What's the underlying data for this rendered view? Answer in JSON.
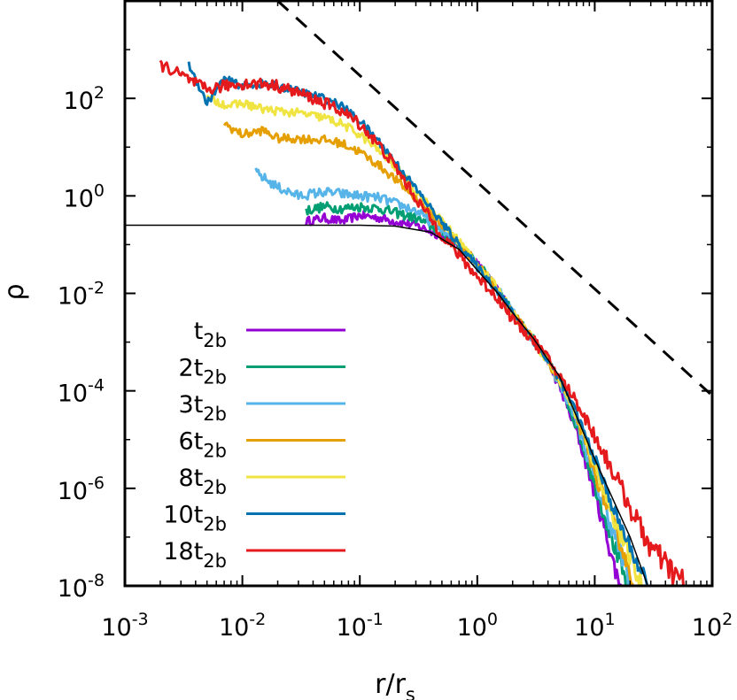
{
  "chart_data": {
    "type": "line",
    "title": "",
    "xlabel": "r/r",
    "xlabel_sub": "s",
    "ylabel": "ρ",
    "xscale": "log",
    "yscale": "log",
    "xlim": [
      0.001,
      100
    ],
    "ylim": [
      1e-08,
      10000
    ],
    "grid": false,
    "legend_position": "bottom-left",
    "x_ticks": [
      {
        "value": 0.001,
        "base": "10",
        "exp": "-3"
      },
      {
        "value": 0.01,
        "base": "10",
        "exp": "-2"
      },
      {
        "value": 0.1,
        "base": "10",
        "exp": "-1"
      },
      {
        "value": 1,
        "base": "10",
        "exp": "0"
      },
      {
        "value": 10,
        "base": "10",
        "exp": "1"
      },
      {
        "value": 100,
        "base": "10",
        "exp": "2"
      }
    ],
    "y_ticks": [
      {
        "value": 1e-08,
        "base": "10",
        "exp": "-8"
      },
      {
        "value": 1e-06,
        "base": "10",
        "exp": "-6"
      },
      {
        "value": 0.0001,
        "base": "10",
        "exp": "-4"
      },
      {
        "value": 0.01,
        "base": "10",
        "exp": "-2"
      },
      {
        "value": 1,
        "base": "10",
        "exp": "0"
      },
      {
        "value": 100,
        "base": "10",
        "exp": "2"
      }
    ],
    "reference_lines": [
      {
        "style": "dashed",
        "color": "#000000",
        "x": [
          0.02,
          100
        ],
        "y": [
          10000,
          8e-05
        ]
      },
      {
        "style": "solid-thin",
        "color": "#000000",
        "x": [
          0.001,
          0.01,
          0.1,
          0.2,
          0.4,
          0.7,
          1.0,
          1.5,
          2,
          3,
          5,
          10,
          20,
          40
        ],
        "y": [
          0.25,
          0.25,
          0.25,
          0.24,
          0.18,
          0.08,
          0.03,
          0.01,
          0.004,
          0.0012,
          0.0002,
          4e-06,
          1e-07,
          1e-09
        ]
      }
    ],
    "series": [
      {
        "name": "t",
        "sub": "2b",
        "prefix": "",
        "color": "#9400d3",
        "x": [
          0.035,
          0.05,
          0.07,
          0.1,
          0.15,
          0.2,
          0.3,
          0.5,
          0.7,
          1,
          1.5,
          2,
          3,
          4,
          5,
          7,
          10,
          13,
          15,
          17
        ],
        "y": [
          0.3,
          0.35,
          0.3,
          0.4,
          0.35,
          0.3,
          0.25,
          0.15,
          0.09,
          0.04,
          0.012,
          0.004,
          0.0011,
          0.0004,
          0.00012,
          1.5e-05,
          8e-07,
          8e-08,
          2e-08,
          1e-08
        ],
        "jitter": 0.09
      },
      {
        "name": "2t",
        "sub": "2b",
        "prefix": "",
        "color": "#009e73",
        "x": [
          0.035,
          0.05,
          0.07,
          0.1,
          0.15,
          0.2,
          0.3,
          0.5,
          0.7,
          1,
          1.5,
          2,
          3,
          4,
          5,
          7,
          10,
          14,
          16,
          19
        ],
        "y": [
          0.5,
          0.6,
          0.55,
          0.6,
          0.55,
          0.45,
          0.35,
          0.18,
          0.1,
          0.04,
          0.012,
          0.004,
          0.0011,
          0.0004,
          0.00014,
          2e-05,
          1.2e-06,
          1e-07,
          3e-08,
          1e-08
        ],
        "jitter": 0.1
      },
      {
        "name": "3t",
        "sub": "2b",
        "prefix": "",
        "color": "#56b4e9",
        "x": [
          0.013,
          0.02,
          0.03,
          0.05,
          0.07,
          0.1,
          0.15,
          0.2,
          0.3,
          0.5,
          0.7,
          1,
          1.5,
          2,
          3,
          4,
          5,
          7,
          10,
          15,
          20
        ],
        "y": [
          3,
          1.5,
          1.0,
          1.2,
          1.1,
          1.0,
          0.9,
          0.7,
          0.5,
          0.2,
          0.1,
          0.04,
          0.012,
          0.004,
          0.0011,
          0.0004,
          0.00015,
          2.5e-05,
          1.5e-06,
          1e-07,
          1e-08
        ],
        "jitter": 0.1
      },
      {
        "name": "6t",
        "sub": "2b",
        "prefix": "",
        "color": "#e69f00",
        "x": [
          0.007,
          0.01,
          0.015,
          0.02,
          0.03,
          0.05,
          0.07,
          0.1,
          0.15,
          0.2,
          0.3,
          0.5,
          0.7,
          1,
          1.5,
          2,
          3,
          4,
          5,
          7,
          10,
          15,
          22
        ],
        "y": [
          30,
          18,
          22,
          15,
          15,
          14,
          12,
          8,
          4,
          2.2,
          0.9,
          0.25,
          0.11,
          0.04,
          0.012,
          0.004,
          0.0011,
          0.0004,
          0.00016,
          3e-05,
          2e-06,
          1.5e-07,
          1e-08
        ],
        "jitter": 0.09
      },
      {
        "name": "8t",
        "sub": "2b",
        "prefix": "",
        "color": "#f0e442",
        "x": [
          0.005,
          0.008,
          0.01,
          0.015,
          0.02,
          0.03,
          0.05,
          0.07,
          0.1,
          0.15,
          0.2,
          0.3,
          0.5,
          0.7,
          1,
          1.5,
          2,
          3,
          4,
          5,
          7,
          10,
          15,
          25
        ],
        "y": [
          100,
          70,
          80,
          60,
          55,
          50,
          40,
          30,
          18,
          8,
          4,
          1.3,
          0.3,
          0.12,
          0.04,
          0.012,
          0.004,
          0.0011,
          0.0004,
          0.00017,
          3e-05,
          3e-06,
          2e-07,
          1e-08
        ],
        "jitter": 0.09
      },
      {
        "name": "10t",
        "sub": "2b",
        "prefix": "",
        "color": "#0072b2",
        "x": [
          0.0035,
          0.005,
          0.007,
          0.01,
          0.015,
          0.02,
          0.03,
          0.05,
          0.07,
          0.1,
          0.15,
          0.2,
          0.3,
          0.5,
          0.7,
          1,
          1.5,
          2,
          3,
          4,
          5,
          7,
          10,
          15,
          28
        ],
        "y": [
          500,
          80,
          250,
          180,
          200,
          180,
          140,
          100,
          70,
          35,
          12,
          5,
          1.4,
          0.28,
          0.1,
          0.035,
          0.011,
          0.004,
          0.0011,
          0.0004,
          0.00018,
          3.5e-05,
          4e-06,
          3e-07,
          1e-08
        ],
        "jitter": 0.08
      },
      {
        "name": "18t",
        "sub": "2b",
        "prefix": "",
        "color": "#e41a1c",
        "x": [
          0.002,
          0.003,
          0.004,
          0.005,
          0.007,
          0.01,
          0.015,
          0.02,
          0.03,
          0.05,
          0.07,
          0.1,
          0.15,
          0.2,
          0.3,
          0.5,
          0.7,
          1,
          1.5,
          2,
          3,
          4,
          5,
          7,
          10,
          15,
          20,
          30,
          45,
          60
        ],
        "y": [
          500,
          300,
          200,
          150,
          180,
          200,
          200,
          180,
          130,
          80,
          55,
          30,
          10,
          4,
          0.9,
          0.16,
          0.06,
          0.022,
          0.008,
          0.003,
          0.0011,
          0.00045,
          0.0002,
          6e-05,
          1.2e-05,
          1.8e-06,
          4e-07,
          6e-08,
          2e-08,
          1e-08
        ],
        "jitter": 0.12
      }
    ]
  }
}
